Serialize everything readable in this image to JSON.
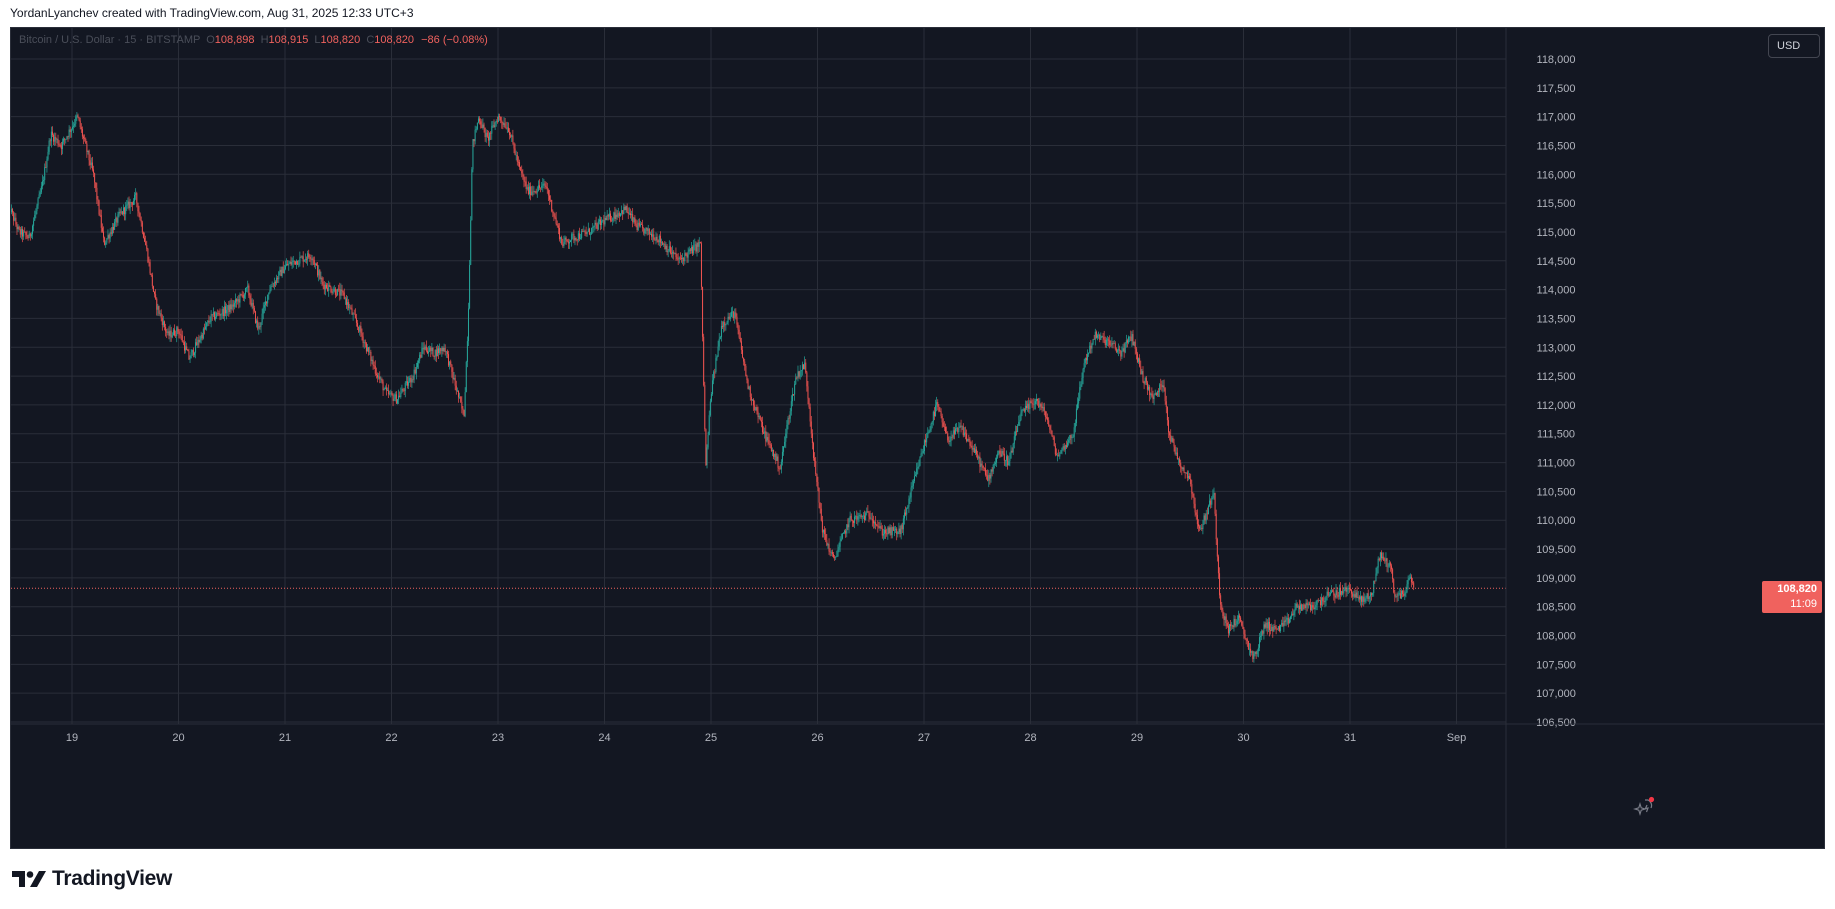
{
  "header": {
    "text": "YordanLyanchev created with TradingView.com, Aug 31, 2025 12:33 UTC+3"
  },
  "legend": {
    "symbol": "Bitcoin / U.S. Dollar · 15 · BITSTAMP",
    "o_key": "O",
    "o_val": "108,898",
    "h_key": "H",
    "h_val": "108,915",
    "l_key": "L",
    "l_val": "108,820",
    "c_key": "C",
    "c_val": "108,820",
    "change": "−86 (−0.08%)"
  },
  "price_scale": {
    "currency": "USD"
  },
  "last_price": {
    "price": "108,820",
    "countdown": "11:09",
    "color": "#f0625e"
  },
  "brand": {
    "name": "TradingView"
  },
  "colors": {
    "up": "#26a69a",
    "down": "#ef5350",
    "background": "#131722",
    "grid": "#2a2e39",
    "axis_text": "#b2b5be"
  },
  "chart_data": {
    "type": "candlestick",
    "symbol": "BTCUSD",
    "exchange": "BITSTAMP",
    "interval": "15",
    "ylim": [
      106500,
      118000
    ],
    "yticks": [
      106500,
      107000,
      107500,
      108000,
      108500,
      109000,
      109500,
      110000,
      110500,
      111000,
      111500,
      112000,
      112500,
      113000,
      113500,
      114000,
      114500,
      115000,
      115500,
      116000,
      116500,
      117000,
      117500,
      118000
    ],
    "ytick_labels": [
      "106,500",
      "107,000",
      "107,500",
      "108,000",
      "108,500",
      "109,000",
      "109,500",
      "110,000",
      "110,500",
      "111,000",
      "111,500",
      "112,000",
      "112,500",
      "113,000",
      "113,500",
      "114,000",
      "114,500",
      "115,000",
      "115,500",
      "116,000",
      "116,500",
      "117,000",
      "117,500",
      "118,000"
    ],
    "xlim": [
      18.4,
      33.0
    ],
    "xticks": [
      19,
      20,
      21,
      22,
      23,
      24,
      25,
      26,
      27,
      28,
      29,
      30,
      31,
      32
    ],
    "xtick_labels": [
      "19",
      "20",
      "21",
      "22",
      "23",
      "24",
      "25",
      "26",
      "27",
      "28",
      "29",
      "30",
      "31",
      "Sep"
    ],
    "last_price": 108820,
    "grid": true,
    "price_path": [
      [
        18.4,
        115500
      ],
      [
        18.5,
        115000
      ],
      [
        18.6,
        114900
      ],
      [
        18.72,
        115800
      ],
      [
        18.8,
        116700
      ],
      [
        18.9,
        116500
      ],
      [
        19.05,
        117000
      ],
      [
        19.2,
        116000
      ],
      [
        19.3,
        114800
      ],
      [
        19.45,
        115300
      ],
      [
        19.6,
        115600
      ],
      [
        19.7,
        114700
      ],
      [
        19.78,
        113800
      ],
      [
        19.9,
        113200
      ],
      [
        20.0,
        113300
      ],
      [
        20.1,
        112800
      ],
      [
        20.3,
        113500
      ],
      [
        20.5,
        113700
      ],
      [
        20.65,
        114000
      ],
      [
        20.75,
        113300
      ],
      [
        20.85,
        114000
      ],
      [
        21.0,
        114400
      ],
      [
        21.1,
        114500
      ],
      [
        21.25,
        114600
      ],
      [
        21.35,
        114100
      ],
      [
        21.55,
        113900
      ],
      [
        21.7,
        113300
      ],
      [
        21.85,
        112600
      ],
      [
        21.95,
        112200
      ],
      [
        22.05,
        112100
      ],
      [
        22.2,
        112500
      ],
      [
        22.3,
        113000
      ],
      [
        22.4,
        112900
      ],
      [
        22.5,
        113000
      ],
      [
        22.62,
        112200
      ],
      [
        22.68,
        111800
      ],
      [
        22.72,
        113500
      ],
      [
        22.76,
        116500
      ],
      [
        22.82,
        117000
      ],
      [
        22.9,
        116600
      ],
      [
        23.0,
        117000
      ],
      [
        23.1,
        116800
      ],
      [
        23.2,
        116100
      ],
      [
        23.28,
        115700
      ],
      [
        23.45,
        115800
      ],
      [
        23.6,
        114800
      ],
      [
        23.7,
        114900
      ],
      [
        23.85,
        115000
      ],
      [
        24.0,
        115200
      ],
      [
        24.2,
        115400
      ],
      [
        24.3,
        115100
      ],
      [
        24.5,
        114900
      ],
      [
        24.7,
        114500
      ],
      [
        24.9,
        114800
      ],
      [
        24.95,
        110900
      ],
      [
        25.0,
        112200
      ],
      [
        25.1,
        113400
      ],
      [
        25.22,
        113600
      ],
      [
        25.35,
        112300
      ],
      [
        25.5,
        111500
      ],
      [
        25.65,
        110900
      ],
      [
        25.72,
        111700
      ],
      [
        25.8,
        112500
      ],
      [
        25.88,
        112700
      ],
      [
        25.92,
        112000
      ],
      [
        25.97,
        111000
      ],
      [
        26.05,
        109800
      ],
      [
        26.15,
        109300
      ],
      [
        26.3,
        110000
      ],
      [
        26.5,
        110100
      ],
      [
        26.6,
        109800
      ],
      [
        26.78,
        109800
      ],
      [
        26.88,
        110500
      ],
      [
        27.0,
        111300
      ],
      [
        27.12,
        112000
      ],
      [
        27.22,
        111400
      ],
      [
        27.35,
        111600
      ],
      [
        27.5,
        111100
      ],
      [
        27.6,
        110700
      ],
      [
        27.7,
        111200
      ],
      [
        27.8,
        111000
      ],
      [
        27.9,
        111800
      ],
      [
        28.05,
        112100
      ],
      [
        28.15,
        111800
      ],
      [
        28.25,
        111100
      ],
      [
        28.4,
        111500
      ],
      [
        28.5,
        112700
      ],
      [
        28.6,
        113200
      ],
      [
        28.72,
        113100
      ],
      [
        28.85,
        112900
      ],
      [
        28.95,
        113200
      ],
      [
        29.05,
        112500
      ],
      [
        29.15,
        112100
      ],
      [
        29.25,
        112400
      ],
      [
        29.3,
        111500
      ],
      [
        29.4,
        111000
      ],
      [
        29.5,
        110700
      ],
      [
        29.58,
        109800
      ],
      [
        29.65,
        110100
      ],
      [
        29.72,
        110500
      ],
      [
        29.78,
        108600
      ],
      [
        29.85,
        108100
      ],
      [
        29.95,
        108300
      ],
      [
        30.05,
        107800
      ],
      [
        30.1,
        107600
      ],
      [
        30.2,
        108200
      ],
      [
        30.3,
        108100
      ],
      [
        30.4,
        108200
      ],
      [
        30.5,
        108500
      ],
      [
        30.65,
        108500
      ],
      [
        30.8,
        108700
      ],
      [
        31.0,
        108800
      ],
      [
        31.1,
        108600
      ],
      [
        31.2,
        108700
      ],
      [
        31.28,
        109400
      ],
      [
        31.38,
        109200
      ],
      [
        31.42,
        108700
      ],
      [
        31.5,
        108700
      ],
      [
        31.56,
        109000
      ],
      [
        31.6,
        108820
      ]
    ]
  }
}
